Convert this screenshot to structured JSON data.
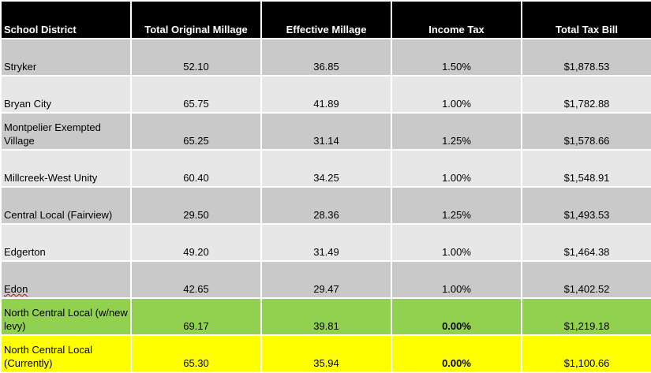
{
  "headers": [
    "School District",
    "Total Original Millage",
    "Effective Millage",
    "Income Tax",
    "Total Tax Bill"
  ],
  "rows": [
    [
      "Stryker",
      "52.10",
      "36.85",
      "1.50%",
      "$1,878.53"
    ],
    [
      "Bryan City",
      "65.75",
      "41.89",
      "1.00%",
      "$1,782.88"
    ],
    [
      "Montpelier Exempted Village",
      "65.25",
      "31.14",
      "1.25%",
      "$1,578.66"
    ],
    [
      "Millcreek-West Unity",
      "60.40",
      "34.25",
      "1.00%",
      "$1,548.91"
    ],
    [
      "Central Local (Fairview)",
      "29.50",
      "28.36",
      "1.25%",
      "$1,493.53"
    ],
    [
      "Edgerton",
      "49.20",
      "31.49",
      "1.00%",
      "$1,464.38"
    ],
    [
      "Edon",
      "42.65",
      "29.47",
      "1.00%",
      "$1,402.52"
    ],
    [
      "North Central Local (w/new levy)",
      "69.17",
      "39.81",
      "0.00%",
      "$1,219.18"
    ],
    [
      "North Central Local (Currently)",
      "65.30",
      "35.94",
      "0.00%",
      "$1,100.66"
    ]
  ],
  "colors": {
    "header": "#000000",
    "row_dark": "#c9c9c9",
    "row_light": "#e7e7e7",
    "highlight_green": "#92d050",
    "highlight_yellow": "#ffff00"
  }
}
